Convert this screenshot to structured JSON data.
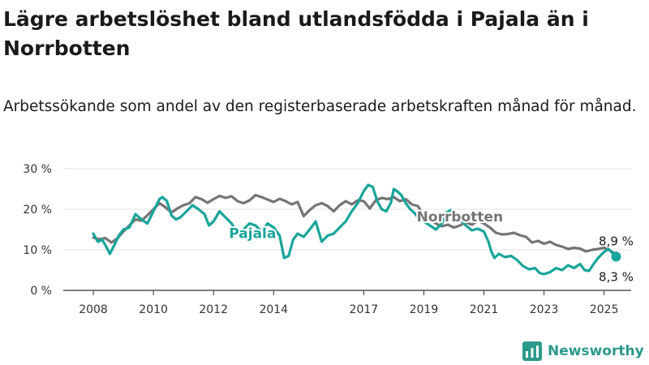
{
  "title": "Lägre arbetslöshet bland utlandsfödda i Pajala än i Norrbotten",
  "subtitle": "Arbetssökande som andel av den registerbaserade arbetskraften månad för månad.",
  "brand": {
    "name": "Newsworthy",
    "icon": "newsworthy-logo-icon"
  },
  "colors": {
    "pajala": "#1aa59a",
    "norrbotten": "#757575",
    "grid": "#e3e3e3",
    "axis": "#333333"
  },
  "chart_data": {
    "type": "line",
    "x_unit": "year",
    "xlim": [
      2007.0,
      2025.9
    ],
    "ylim": [
      0,
      30
    ],
    "y_ticks": [
      0,
      10,
      20,
      30
    ],
    "y_tick_labels": [
      "0 %",
      "10 %",
      "20 %",
      "30 %"
    ],
    "x_ticks": [
      2008,
      2010,
      2012,
      2014,
      2017,
      2019,
      2021,
      2023,
      2025
    ],
    "x_tick_labels": [
      "2008",
      "2010",
      "2012",
      "2014",
      "2017",
      "2019",
      "2021",
      "2023",
      "2025"
    ],
    "grid": "horizontal",
    "legend": "direct labels",
    "series": [
      {
        "name": "Norrbotten",
        "color": "#757575",
        "points": [
          [
            2008.0,
            13.0
          ],
          [
            2008.2,
            12.6
          ],
          [
            2008.4,
            12.9
          ],
          [
            2008.6,
            11.8
          ],
          [
            2008.8,
            12.8
          ],
          [
            2009.0,
            14.5
          ],
          [
            2009.2,
            16.0
          ],
          [
            2009.4,
            17.5
          ],
          [
            2009.6,
            17.2
          ],
          [
            2009.8,
            18.5
          ],
          [
            2010.0,
            20.0
          ],
          [
            2010.2,
            21.5
          ],
          [
            2010.4,
            20.5
          ],
          [
            2010.6,
            19.2
          ],
          [
            2010.8,
            20.2
          ],
          [
            2011.0,
            21.0
          ],
          [
            2011.2,
            21.5
          ],
          [
            2011.4,
            23.0
          ],
          [
            2011.6,
            22.5
          ],
          [
            2011.8,
            21.6
          ],
          [
            2012.0,
            22.5
          ],
          [
            2012.2,
            23.3
          ],
          [
            2012.4,
            22.8
          ],
          [
            2012.6,
            23.2
          ],
          [
            2012.8,
            22.0
          ],
          [
            2013.0,
            21.5
          ],
          [
            2013.2,
            22.2
          ],
          [
            2013.4,
            23.5
          ],
          [
            2013.6,
            23.0
          ],
          [
            2013.8,
            22.4
          ],
          [
            2014.0,
            21.8
          ],
          [
            2014.2,
            22.6
          ],
          [
            2014.4,
            22.0
          ],
          [
            2014.6,
            21.2
          ],
          [
            2014.8,
            21.8
          ],
          [
            2015.0,
            18.3
          ],
          [
            2015.2,
            19.8
          ],
          [
            2015.4,
            21.0
          ],
          [
            2015.6,
            21.5
          ],
          [
            2015.8,
            20.8
          ],
          [
            2016.0,
            19.5
          ],
          [
            2016.2,
            21.0
          ],
          [
            2016.4,
            22.0
          ],
          [
            2016.6,
            21.2
          ],
          [
            2016.8,
            22.2
          ],
          [
            2017.0,
            22.0
          ],
          [
            2017.2,
            20.2
          ],
          [
            2017.4,
            22.2
          ],
          [
            2017.6,
            22.8
          ],
          [
            2017.8,
            22.5
          ],
          [
            2018.0,
            23.0
          ],
          [
            2018.2,
            22.0
          ],
          [
            2018.4,
            22.5
          ],
          [
            2018.6,
            21.2
          ],
          [
            2018.8,
            20.8
          ],
          [
            2019.0,
            18.5
          ],
          [
            2019.2,
            17.5
          ],
          [
            2019.4,
            16.5
          ],
          [
            2019.6,
            15.8
          ],
          [
            2019.8,
            16.2
          ],
          [
            2020.0,
            15.5
          ],
          [
            2020.2,
            16.0
          ],
          [
            2020.4,
            16.8
          ],
          [
            2020.6,
            16.2
          ],
          [
            2020.8,
            17.2
          ],
          [
            2021.0,
            16.5
          ],
          [
            2021.2,
            15.5
          ],
          [
            2021.4,
            14.2
          ],
          [
            2021.6,
            13.8
          ],
          [
            2021.8,
            13.9
          ],
          [
            2022.0,
            14.2
          ],
          [
            2022.2,
            13.6
          ],
          [
            2022.4,
            13.2
          ],
          [
            2022.6,
            11.8
          ],
          [
            2022.8,
            12.2
          ],
          [
            2023.0,
            11.5
          ],
          [
            2023.2,
            12.0
          ],
          [
            2023.4,
            11.2
          ],
          [
            2023.6,
            10.8
          ],
          [
            2023.8,
            10.2
          ],
          [
            2024.0,
            10.5
          ],
          [
            2024.2,
            10.3
          ],
          [
            2024.4,
            9.6
          ],
          [
            2024.6,
            10.0
          ],
          [
            2024.8,
            10.2
          ],
          [
            2025.0,
            10.5
          ],
          [
            2025.2,
            9.8
          ],
          [
            2025.4,
            8.9
          ]
        ]
      },
      {
        "name": "Pajala",
        "color": "#1aa59a",
        "points": [
          [
            2008.0,
            14.0
          ],
          [
            2008.15,
            12.0
          ],
          [
            2008.3,
            12.5
          ],
          [
            2008.45,
            10.5
          ],
          [
            2008.55,
            9.0
          ],
          [
            2008.7,
            11.2
          ],
          [
            2008.85,
            13.5
          ],
          [
            2009.0,
            15.0
          ],
          [
            2009.2,
            15.5
          ],
          [
            2009.4,
            18.8
          ],
          [
            2009.6,
            17.5
          ],
          [
            2009.8,
            16.5
          ],
          [
            2010.0,
            19.5
          ],
          [
            2010.2,
            22.5
          ],
          [
            2010.3,
            23.0
          ],
          [
            2010.45,
            22.0
          ],
          [
            2010.6,
            18.5
          ],
          [
            2010.75,
            17.5
          ],
          [
            2010.9,
            18.0
          ],
          [
            2011.1,
            19.5
          ],
          [
            2011.3,
            21.0
          ],
          [
            2011.5,
            20.0
          ],
          [
            2011.7,
            18.8
          ],
          [
            2011.85,
            16.0
          ],
          [
            2012.0,
            17.0
          ],
          [
            2012.2,
            19.5
          ],
          [
            2012.4,
            18.0
          ],
          [
            2012.6,
            16.5
          ],
          [
            2012.8,
            14.2
          ],
          [
            2013.0,
            15.0
          ],
          [
            2013.2,
            16.5
          ],
          [
            2013.4,
            16.0
          ],
          [
            2013.6,
            14.5
          ],
          [
            2013.8,
            16.5
          ],
          [
            2014.0,
            15.5
          ],
          [
            2014.2,
            13.5
          ],
          [
            2014.35,
            8.0
          ],
          [
            2014.5,
            8.5
          ],
          [
            2014.65,
            12.5
          ],
          [
            2014.8,
            14.0
          ],
          [
            2015.0,
            13.2
          ],
          [
            2015.2,
            15.0
          ],
          [
            2015.4,
            17.0
          ],
          [
            2015.6,
            12.0
          ],
          [
            2015.8,
            13.5
          ],
          [
            2016.0,
            14.0
          ],
          [
            2016.2,
            15.5
          ],
          [
            2016.4,
            17.0
          ],
          [
            2016.6,
            19.5
          ],
          [
            2016.8,
            21.5
          ],
          [
            2017.0,
            24.5
          ],
          [
            2017.15,
            26.0
          ],
          [
            2017.3,
            25.5
          ],
          [
            2017.45,
            22.0
          ],
          [
            2017.6,
            20.0
          ],
          [
            2017.75,
            19.5
          ],
          [
            2017.9,
            21.5
          ],
          [
            2018.0,
            25.0
          ],
          [
            2018.1,
            24.5
          ],
          [
            2018.25,
            23.5
          ],
          [
            2018.4,
            21.5
          ],
          [
            2018.55,
            20.0
          ],
          [
            2018.7,
            19.0
          ],
          [
            2018.85,
            17.5
          ],
          [
            2019.0,
            17.0
          ],
          [
            2019.2,
            16.0
          ],
          [
            2019.4,
            15.0
          ],
          [
            2019.6,
            16.5
          ],
          [
            2019.75,
            19.2
          ],
          [
            2019.9,
            19.8
          ],
          [
            2020.05,
            19.0
          ],
          [
            2020.2,
            17.5
          ],
          [
            2020.4,
            16.0
          ],
          [
            2020.6,
            14.8
          ],
          [
            2020.8,
            15.2
          ],
          [
            2021.0,
            14.5
          ],
          [
            2021.15,
            12.0
          ],
          [
            2021.25,
            9.5
          ],
          [
            2021.35,
            8.0
          ],
          [
            2021.5,
            9.0
          ],
          [
            2021.7,
            8.2
          ],
          [
            2021.9,
            8.5
          ],
          [
            2022.1,
            7.5
          ],
          [
            2022.3,
            6.0
          ],
          [
            2022.5,
            5.2
          ],
          [
            2022.7,
            5.5
          ],
          [
            2022.85,
            4.3
          ],
          [
            2023.0,
            4.0
          ],
          [
            2023.2,
            4.5
          ],
          [
            2023.4,
            5.5
          ],
          [
            2023.6,
            5.0
          ],
          [
            2023.8,
            6.2
          ],
          [
            2024.0,
            5.5
          ],
          [
            2024.2,
            6.5
          ],
          [
            2024.35,
            5.0
          ],
          [
            2024.5,
            4.8
          ],
          [
            2024.65,
            6.5
          ],
          [
            2024.8,
            8.0
          ],
          [
            2025.0,
            9.5
          ],
          [
            2025.15,
            10.2
          ],
          [
            2025.3,
            9.0
          ],
          [
            2025.4,
            8.3
          ]
        ]
      }
    ],
    "annotations": [
      {
        "series": "Pajala",
        "text": "Pajala"
      },
      {
        "series": "Norrbotten",
        "text": "Norrbotten"
      },
      {
        "series": "Norrbotten",
        "text": "8,9 %",
        "value": 8.9
      },
      {
        "series": "Pajala",
        "text": "8,3 %",
        "value": 8.3
      }
    ]
  }
}
